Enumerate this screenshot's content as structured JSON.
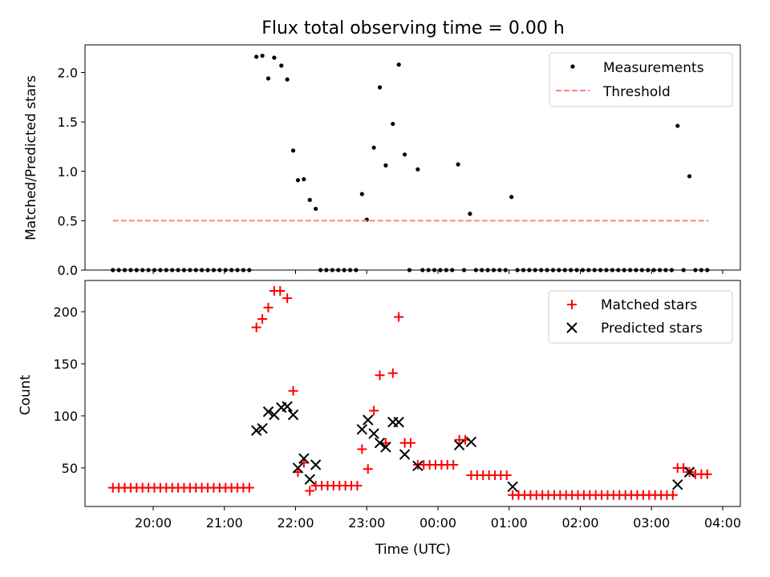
{
  "title": "Flux total observing time = 0.00 h",
  "colors": {
    "measurement": "#000000",
    "threshold": "#ff7f7f",
    "matched": "#ff0000",
    "predicted": "#000000"
  },
  "chart_data": [
    {
      "type": "scatter",
      "xlabel": "",
      "ylabel": "Matched/Predicted stars",
      "x_ticks": [
        "20:00",
        "21:00",
        "22:00",
        "23:00",
        "00:00",
        "01:00",
        "02:00",
        "03:00",
        "04:00"
      ],
      "y_ticks": [
        "0.0",
        "0.5",
        "1.0",
        "1.5",
        "2.0"
      ],
      "ylim": [
        0,
        2.28
      ],
      "legend": {
        "placement": "top-right",
        "entries": [
          "Measurements",
          "Threshold"
        ]
      },
      "series": [
        {
          "name": "Measurements",
          "marker": "dot",
          "points": [
            [
              "19:26",
              0
            ],
            [
              "19:31",
              0
            ],
            [
              "19:36",
              0
            ],
            [
              "19:41",
              0
            ],
            [
              "19:46",
              0
            ],
            [
              "19:51",
              0
            ],
            [
              "19:56",
              0
            ],
            [
              "20:01",
              0
            ],
            [
              "20:06",
              0
            ],
            [
              "20:11",
              0
            ],
            [
              "20:16",
              0
            ],
            [
              "20:21",
              0
            ],
            [
              "20:26",
              0
            ],
            [
              "20:31",
              0
            ],
            [
              "20:36",
              0
            ],
            [
              "20:41",
              0
            ],
            [
              "20:46",
              0
            ],
            [
              "20:51",
              0
            ],
            [
              "20:56",
              0
            ],
            [
              "21:01",
              0
            ],
            [
              "21:06",
              0
            ],
            [
              "21:11",
              0
            ],
            [
              "21:16",
              0
            ],
            [
              "21:21",
              0
            ],
            [
              "21:27",
              2.16
            ],
            [
              "21:32",
              2.17
            ],
            [
              "21:37",
              1.94
            ],
            [
              "21:42",
              2.15
            ],
            [
              "21:48",
              2.07
            ],
            [
              "21:53",
              1.93
            ],
            [
              "21:58",
              1.21
            ],
            [
              "22:02",
              0.91
            ],
            [
              "22:07",
              0.92
            ],
            [
              "22:12",
              0.71
            ],
            [
              "22:17",
              0.62
            ],
            [
              "22:21",
              0
            ],
            [
              "22:26",
              0
            ],
            [
              "22:31",
              0
            ],
            [
              "22:36",
              0
            ],
            [
              "22:41",
              0
            ],
            [
              "22:46",
              0
            ],
            [
              "22:51",
              0
            ],
            [
              "22:56",
              0.77
            ],
            [
              "23:00",
              0.51
            ],
            [
              "23:06",
              1.24
            ],
            [
              "23:11",
              1.85
            ],
            [
              "23:16",
              1.06
            ],
            [
              "23:22",
              1.48
            ],
            [
              "23:27",
              2.08
            ],
            [
              "23:32",
              1.17
            ],
            [
              "23:36",
              0
            ],
            [
              "23:43",
              1.02
            ],
            [
              "23:47",
              0
            ],
            [
              "23:52",
              0
            ],
            [
              "23:57",
              0
            ],
            [
              "00:02",
              0
            ],
            [
              "00:07",
              0
            ],
            [
              "00:12",
              0
            ],
            [
              "00:17",
              1.07
            ],
            [
              "00:22",
              0
            ],
            [
              "00:27",
              0.57
            ],
            [
              "00:32",
              0
            ],
            [
              "00:37",
              0
            ],
            [
              "00:42",
              0
            ],
            [
              "00:47",
              0
            ],
            [
              "00:52",
              0
            ],
            [
              "00:57",
              0
            ],
            [
              "01:02",
              0.74
            ],
            [
              "01:07",
              0
            ],
            [
              "01:12",
              0
            ],
            [
              "01:17",
              0
            ],
            [
              "01:22",
              0
            ],
            [
              "01:27",
              0
            ],
            [
              "01:32",
              0
            ],
            [
              "01:37",
              0
            ],
            [
              "01:42",
              0
            ],
            [
              "01:47",
              0
            ],
            [
              "01:52",
              0
            ],
            [
              "01:57",
              0
            ],
            [
              "02:02",
              0
            ],
            [
              "02:07",
              0
            ],
            [
              "02:12",
              0
            ],
            [
              "02:17",
              0
            ],
            [
              "02:22",
              0
            ],
            [
              "02:27",
              0
            ],
            [
              "02:32",
              0
            ],
            [
              "02:37",
              0
            ],
            [
              "02:42",
              0
            ],
            [
              "02:47",
              0
            ],
            [
              "02:52",
              0
            ],
            [
              "02:57",
              0
            ],
            [
              "03:02",
              0
            ],
            [
              "03:07",
              0
            ],
            [
              "03:12",
              0
            ],
            [
              "03:17",
              0
            ],
            [
              "03:22",
              1.46
            ],
            [
              "03:27",
              0
            ],
            [
              "03:32",
              0.95
            ],
            [
              "03:37",
              0
            ],
            [
              "03:42",
              0
            ],
            [
              "03:47",
              0
            ]
          ]
        },
        {
          "name": "Threshold",
          "line": "dashed",
          "points": [
            [
              "19:26",
              0.5
            ],
            [
              "03:48",
              0.5
            ]
          ]
        }
      ]
    },
    {
      "type": "scatter",
      "xlabel": "Time (UTC)",
      "ylabel": "Count",
      "x_ticks": [
        "20:00",
        "21:00",
        "22:00",
        "23:00",
        "00:00",
        "01:00",
        "02:00",
        "03:00",
        "04:00"
      ],
      "y_ticks": [
        "50",
        "100",
        "150",
        "200"
      ],
      "ylim": [
        13,
        230
      ],
      "legend": {
        "placement": "top-right",
        "entries": [
          "Matched stars",
          "Predicted stars"
        ]
      },
      "series": [
        {
          "name": "Matched stars",
          "marker": "plus",
          "points": [
            [
              "19:26",
              31
            ],
            [
              "19:31",
              31
            ],
            [
              "19:36",
              31
            ],
            [
              "19:41",
              31
            ],
            [
              "19:46",
              31
            ],
            [
              "19:51",
              31
            ],
            [
              "19:56",
              31
            ],
            [
              "20:01",
              31
            ],
            [
              "20:06",
              31
            ],
            [
              "20:11",
              31
            ],
            [
              "20:16",
              31
            ],
            [
              "20:21",
              31
            ],
            [
              "20:26",
              31
            ],
            [
              "20:31",
              31
            ],
            [
              "20:36",
              31
            ],
            [
              "20:41",
              31
            ],
            [
              "20:46",
              31
            ],
            [
              "20:51",
              31
            ],
            [
              "20:56",
              31
            ],
            [
              "21:01",
              31
            ],
            [
              "21:06",
              31
            ],
            [
              "21:11",
              31
            ],
            [
              "21:16",
              31
            ],
            [
              "21:21",
              31
            ],
            [
              "21:27",
              185
            ],
            [
              "21:32",
              193
            ],
            [
              "21:37",
              204
            ],
            [
              "21:42",
              220
            ],
            [
              "21:47",
              220
            ],
            [
              "21:53",
              213
            ],
            [
              "21:58",
              124
            ],
            [
              "22:02",
              46
            ],
            [
              "22:07",
              55
            ],
            [
              "22:12",
              28
            ],
            [
              "22:17",
              33
            ],
            [
              "22:22",
              33
            ],
            [
              "22:27",
              33
            ],
            [
              "22:32",
              33
            ],
            [
              "22:37",
              33
            ],
            [
              "22:42",
              33
            ],
            [
              "22:47",
              33
            ],
            [
              "22:52",
              33
            ],
            [
              "22:56",
              68
            ],
            [
              "23:01",
              49
            ],
            [
              "23:06",
              105
            ],
            [
              "23:11",
              139
            ],
            [
              "23:16",
              74
            ],
            [
              "23:22",
              141
            ],
            [
              "23:27",
              195
            ],
            [
              "23:32",
              74
            ],
            [
              "23:37",
              74
            ],
            [
              "23:43",
              53
            ],
            [
              "23:48",
              53
            ],
            [
              "23:53",
              53
            ],
            [
              "23:58",
              53
            ],
            [
              "00:03",
              53
            ],
            [
              "00:08",
              53
            ],
            [
              "00:13",
              53
            ],
            [
              "00:18",
              77
            ],
            [
              "00:23",
              77
            ],
            [
              "00:28",
              43
            ],
            [
              "00:33",
              43
            ],
            [
              "00:38",
              43
            ],
            [
              "00:43",
              43
            ],
            [
              "00:48",
              43
            ],
            [
              "00:53",
              43
            ],
            [
              "00:58",
              43
            ],
            [
              "01:03",
              24
            ],
            [
              "01:08",
              24
            ],
            [
              "01:13",
              24
            ],
            [
              "01:18",
              24
            ],
            [
              "01:23",
              24
            ],
            [
              "01:28",
              24
            ],
            [
              "01:33",
              24
            ],
            [
              "01:38",
              24
            ],
            [
              "01:43",
              24
            ],
            [
              "01:48",
              24
            ],
            [
              "01:53",
              24
            ],
            [
              "01:58",
              24
            ],
            [
              "02:03",
              24
            ],
            [
              "02:08",
              24
            ],
            [
              "02:13",
              24
            ],
            [
              "02:18",
              24
            ],
            [
              "02:23",
              24
            ],
            [
              "02:28",
              24
            ],
            [
              "02:33",
              24
            ],
            [
              "02:38",
              24
            ],
            [
              "02:43",
              24
            ],
            [
              "02:48",
              24
            ],
            [
              "02:53",
              24
            ],
            [
              "02:58",
              24
            ],
            [
              "03:03",
              24
            ],
            [
              "03:08",
              24
            ],
            [
              "03:13",
              24
            ],
            [
              "03:18",
              24
            ],
            [
              "03:22",
              50
            ],
            [
              "03:27",
              50
            ],
            [
              "03:32",
              46
            ],
            [
              "03:37",
              44
            ],
            [
              "03:42",
              44
            ],
            [
              "03:47",
              44
            ]
          ]
        },
        {
          "name": "Predicted stars",
          "marker": "x",
          "points": [
            [
              "21:27",
              86
            ],
            [
              "21:32",
              88
            ],
            [
              "21:37",
              104
            ],
            [
              "21:42",
              101
            ],
            [
              "21:48",
              108
            ],
            [
              "21:53",
              109
            ],
            [
              "21:58",
              101
            ],
            [
              "22:02",
              50
            ],
            [
              "22:07",
              59
            ],
            [
              "22:12",
              39
            ],
            [
              "22:17",
              53
            ],
            [
              "22:56",
              87
            ],
            [
              "23:01",
              96
            ],
            [
              "23:06",
              83
            ],
            [
              "23:11",
              74
            ],
            [
              "23:16",
              70
            ],
            [
              "23:22",
              94
            ],
            [
              "23:27",
              94
            ],
            [
              "23:32",
              63
            ],
            [
              "23:43",
              52
            ],
            [
              "00:18",
              72
            ],
            [
              "00:28",
              75
            ],
            [
              "01:03",
              32
            ],
            [
              "03:22",
              34
            ],
            [
              "03:32",
              46
            ]
          ]
        }
      ]
    }
  ]
}
